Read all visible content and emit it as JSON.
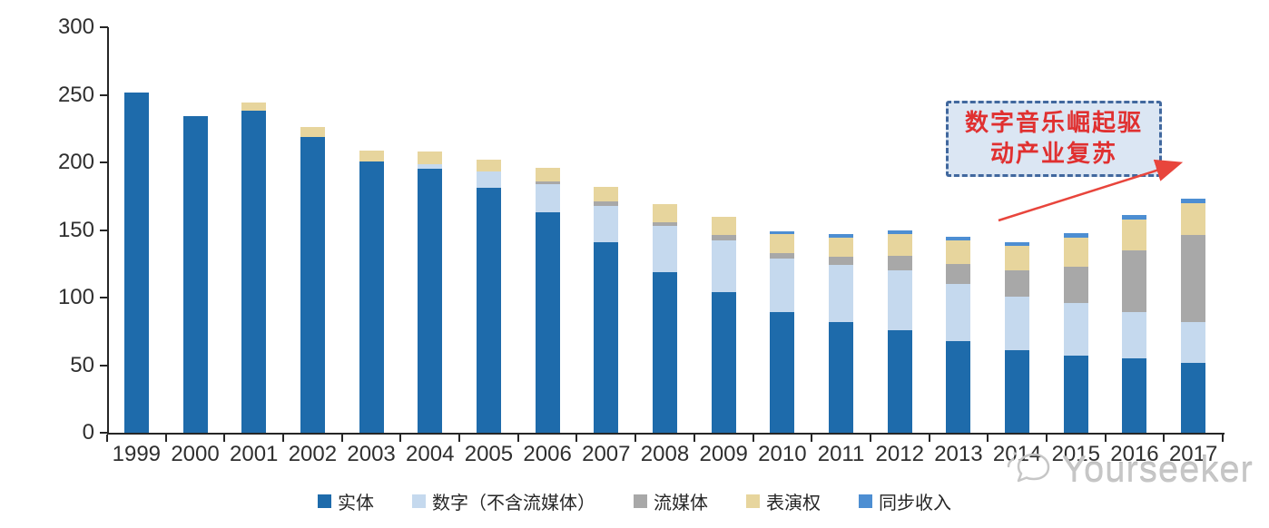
{
  "chart_data": {
    "type": "bar",
    "variant": "stacked",
    "title": "",
    "xlabel": "",
    "ylabel": "",
    "categories": [
      "1999",
      "2000",
      "2001",
      "2002",
      "2003",
      "2004",
      "2005",
      "2006",
      "2007",
      "2008",
      "2009",
      "2010",
      "2011",
      "2012",
      "2013",
      "2014",
      "2015",
      "2016",
      "2017"
    ],
    "series": [
      {
        "name": "实体",
        "color": "#1e6bab",
        "values": [
          252,
          234,
          238,
          219,
          201,
          195,
          181,
          163,
          141,
          119,
          104,
          89,
          82,
          76,
          68,
          61,
          57,
          55,
          52
        ]
      },
      {
        "name": "数字（不含流媒体）",
        "color": "#c5d9ee",
        "values": [
          0,
          0,
          0,
          0,
          0,
          4,
          12,
          21,
          27,
          34,
          38,
          40,
          42,
          44,
          42,
          40,
          39,
          34,
          30
        ]
      },
      {
        "name": "流媒体",
        "color": "#a8a8a8",
        "values": [
          0,
          0,
          0,
          0,
          0,
          0,
          0,
          2,
          3,
          3,
          4,
          4,
          6,
          11,
          15,
          19,
          27,
          46,
          64
        ]
      },
      {
        "name": "表演权",
        "color": "#e7d59d",
        "values": [
          0,
          0,
          6,
          7,
          8,
          9,
          9,
          10,
          11,
          13,
          14,
          14,
          14,
          16,
          17,
          18,
          21,
          23,
          24
        ]
      },
      {
        "name": "同步收入",
        "color": "#4d8ed2",
        "values": [
          0,
          0,
          0,
          0,
          0,
          0,
          0,
          0,
          0,
          0,
          0,
          2,
          3,
          3,
          3,
          3,
          4,
          3,
          3
        ]
      }
    ],
    "ylim": [
      0,
      300
    ],
    "yticks": [
      0,
      50,
      100,
      150,
      200,
      250,
      300
    ],
    "grid": false,
    "legend_position": "bottom"
  },
  "annotation": {
    "line1": "数字音乐崛起驱",
    "line2": "动产业复苏",
    "text_color": "#e03030",
    "box_fill": "#dbe6f3",
    "box_border": "#41689e",
    "arrow_color": "#e8453c"
  },
  "watermark": {
    "text": "Yourseeker",
    "icon": "megaphone-icon",
    "color": "#c6c6c6"
  }
}
